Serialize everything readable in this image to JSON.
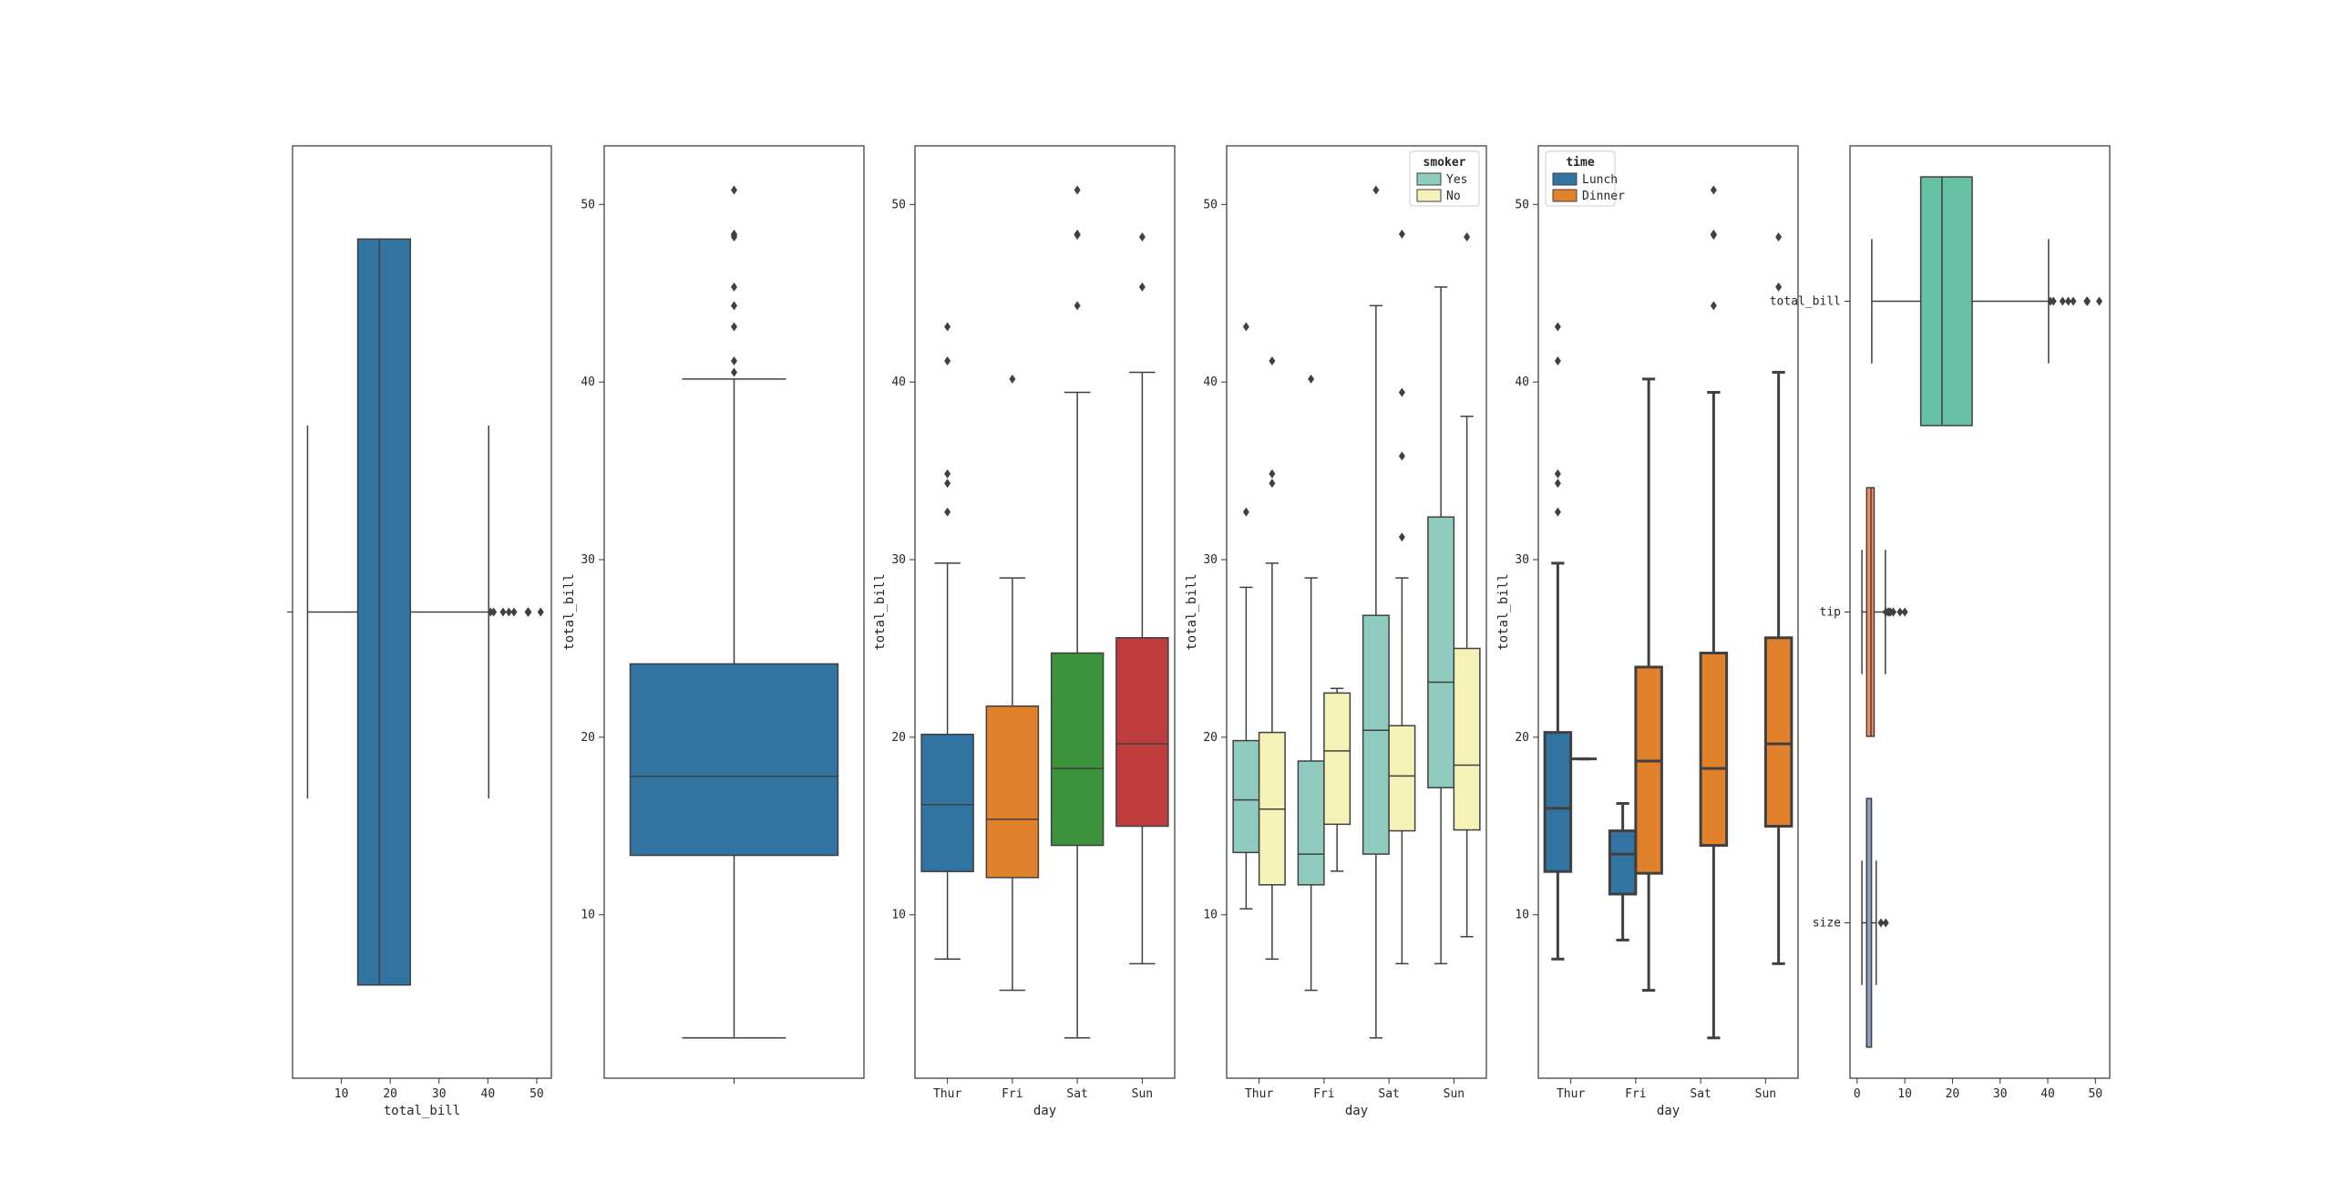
{
  "colors": {
    "default_blue": "#3274a1",
    "tab10": [
      "#3274a1",
      "#e1812c",
      "#3a923a",
      "#c03d3e"
    ],
    "smoker": {
      "Yes": "#8fcbbf",
      "No": "#f5f2b8"
    },
    "time": {
      "Lunch": "#3274a1",
      "Dinner": "#e1812c"
    },
    "set2": [
      "#66c2a5",
      "#fc8d62",
      "#8da0cb"
    ],
    "line": "#404040",
    "axes": "#333333"
  },
  "chart_data": [
    {
      "type": "boxplot",
      "orient": "h",
      "xlabel": "total_bill",
      "ylabel": "",
      "xlim": [
        0,
        53
      ],
      "xticks": [
        10,
        20,
        30,
        40,
        50
      ],
      "yticks": [],
      "boxes": [
        {
          "cat": "",
          "color_key": "default_blue",
          "whislo": 3.07,
          "q1": 13.35,
          "med": 17.8,
          "q3": 24.13,
          "whishi": 40.17,
          "fliers": [
            40.55,
            41.19,
            43.11,
            44.3,
            45.35,
            48.17,
            48.27,
            48.33,
            50.81
          ]
        }
      ]
    },
    {
      "type": "boxplot",
      "orient": "v",
      "xlabel": "",
      "ylabel": "total_bill",
      "ylim": [
        0.8,
        53.3
      ],
      "yticks": [
        10,
        20,
        30,
        40,
        50
      ],
      "categories": [
        ""
      ],
      "boxes": [
        {
          "cat": "",
          "color_key": "default_blue",
          "whislo": 3.07,
          "q1": 13.35,
          "med": 17.8,
          "q3": 24.13,
          "whishi": 40.17,
          "fliers": [
            40.55,
            41.19,
            43.11,
            44.3,
            45.35,
            48.17,
            48.27,
            48.33,
            50.81
          ]
        }
      ]
    },
    {
      "type": "boxplot",
      "orient": "v",
      "xlabel": "day",
      "ylabel": "total_bill",
      "ylim": [
        0.8,
        53.3
      ],
      "yticks": [
        10,
        20,
        30,
        40,
        50
      ],
      "categories": [
        "Thur",
        "Fri",
        "Sat",
        "Sun"
      ],
      "boxes": [
        {
          "cat": "Thur",
          "color_key": "tab10.0",
          "whislo": 7.51,
          "q1": 12.44,
          "med": 16.2,
          "q3": 20.16,
          "whishi": 29.8,
          "fliers": [
            32.68,
            34.3,
            34.83,
            41.19,
            43.11
          ]
        },
        {
          "cat": "Fri",
          "color_key": "tab10.1",
          "whislo": 5.75,
          "q1": 12.1,
          "med": 15.38,
          "q3": 21.75,
          "whishi": 28.97,
          "fliers": [
            40.17
          ]
        },
        {
          "cat": "Sat",
          "color_key": "tab10.2",
          "whislo": 3.07,
          "q1": 13.91,
          "med": 18.24,
          "q3": 24.74,
          "whishi": 39.42,
          "fliers": [
            44.3,
            48.27,
            48.33,
            50.81
          ]
        },
        {
          "cat": "Sun",
          "color_key": "tab10.3",
          "whislo": 7.25,
          "q1": 14.99,
          "med": 19.63,
          "q3": 25.6,
          "whishi": 40.55,
          "fliers": [
            45.35,
            48.17
          ]
        }
      ]
    },
    {
      "type": "boxplot",
      "orient": "v",
      "xlabel": "day",
      "ylabel": "total_bill",
      "ylim": [
        0.8,
        53.3
      ],
      "yticks": [
        10,
        20,
        30,
        40,
        50
      ],
      "categories": [
        "Thur",
        "Fri",
        "Sat",
        "Sun"
      ],
      "legend": {
        "title": "smoker",
        "position": "upper right",
        "entries": [
          "Yes",
          "No"
        ]
      },
      "boxes": [
        {
          "cat": "Thur",
          "hue": "Yes",
          "color_key": "smoker.Yes",
          "whislo": 10.34,
          "q1": 13.51,
          "med": 16.47,
          "q3": 19.81,
          "whishi": 28.44,
          "fliers": [
            32.68,
            43.11
          ]
        },
        {
          "cat": "Thur",
          "hue": "No",
          "color_key": "smoker.No",
          "whislo": 7.51,
          "q1": 11.69,
          "med": 15.95,
          "q3": 20.27,
          "whishi": 29.8,
          "fliers": [
            34.3,
            34.83,
            41.19
          ]
        },
        {
          "cat": "Fri",
          "hue": "Yes",
          "color_key": "smoker.Yes",
          "whislo": 5.75,
          "q1": 11.69,
          "med": 13.42,
          "q3": 18.66,
          "whishi": 28.97,
          "fliers": [
            40.17
          ]
        },
        {
          "cat": "Fri",
          "hue": "No",
          "color_key": "smoker.No",
          "whislo": 12.46,
          "q1": 15.1,
          "med": 19.23,
          "q3": 22.49,
          "whishi": 22.75,
          "fliers": []
        },
        {
          "cat": "Sat",
          "hue": "Yes",
          "color_key": "smoker.Yes",
          "whislo": 3.07,
          "q1": 13.42,
          "med": 20.39,
          "q3": 26.86,
          "whishi": 44.3,
          "fliers": [
            50.81
          ]
        },
        {
          "cat": "Sat",
          "hue": "No",
          "color_key": "smoker.No",
          "whislo": 7.25,
          "q1": 14.73,
          "med": 17.82,
          "q3": 20.65,
          "whishi": 28.97,
          "fliers": [
            31.27,
            35.83,
            39.42,
            48.33
          ]
        },
        {
          "cat": "Sun",
          "hue": "Yes",
          "color_key": "smoker.Yes",
          "whislo": 7.25,
          "q1": 17.16,
          "med": 23.1,
          "q3": 32.4,
          "whishi": 45.35,
          "fliers": []
        },
        {
          "cat": "Sun",
          "hue": "No",
          "color_key": "smoker.No",
          "whislo": 8.77,
          "q1": 14.78,
          "med": 18.43,
          "q3": 25.0,
          "whishi": 38.07,
          "fliers": [
            48.17
          ]
        }
      ]
    },
    {
      "type": "boxplot",
      "orient": "v",
      "xlabel": "day",
      "ylabel": "total_bill",
      "ylim": [
        0.8,
        53.3
      ],
      "yticks": [
        10,
        20,
        30,
        40,
        50
      ],
      "categories": [
        "Thur",
        "Fri",
        "Sat",
        "Sun"
      ],
      "legend": {
        "title": "time",
        "position": "upper left",
        "entries": [
          "Lunch",
          "Dinner"
        ]
      },
      "boxes": [
        {
          "cat": "Thur",
          "hue": "Lunch",
          "color_key": "time.Lunch",
          "whislo": 7.51,
          "q1": 12.44,
          "med": 16.0,
          "q3": 20.27,
          "whishi": 29.8,
          "fliers": [
            32.68,
            34.3,
            34.83,
            41.19,
            43.11
          ]
        },
        {
          "cat": "Thur",
          "hue": "Dinner",
          "color_key": "time.Dinner",
          "whislo": 18.78,
          "q1": 18.78,
          "med": 18.78,
          "q3": 18.78,
          "whishi": 18.78,
          "fliers": []
        },
        {
          "cat": "Fri",
          "hue": "Lunch",
          "color_key": "time.Lunch",
          "whislo": 8.58,
          "q1": 11.17,
          "med": 13.42,
          "q3": 14.73,
          "whishi": 16.27,
          "fliers": []
        },
        {
          "cat": "Fri",
          "hue": "Dinner",
          "color_key": "time.Dinner",
          "whislo": 5.75,
          "q1": 12.34,
          "med": 18.66,
          "q3": 23.95,
          "whishi": 40.17,
          "fliers": []
        },
        {
          "cat": "Sat",
          "hue": "Dinner",
          "color_key": "time.Dinner",
          "whislo": 3.07,
          "q1": 13.91,
          "med": 18.24,
          "q3": 24.74,
          "whishi": 39.42,
          "fliers": [
            44.3,
            48.27,
            48.33,
            50.81
          ]
        },
        {
          "cat": "Sun",
          "hue": "Dinner",
          "color_key": "time.Dinner",
          "whislo": 7.25,
          "q1": 14.99,
          "med": 19.63,
          "q3": 25.6,
          "whishi": 40.55,
          "fliers": [
            45.35,
            48.17
          ]
        }
      ]
    },
    {
      "type": "boxplot",
      "orient": "h",
      "xlabel": "",
      "ylabel": "",
      "xlim": [
        -1.5,
        53
      ],
      "xticks": [
        0,
        10,
        20,
        30,
        40,
        50
      ],
      "categories": [
        "total_bill",
        "tip",
        "size"
      ],
      "boxes": [
        {
          "cat": "total_bill",
          "color_key": "set2.0",
          "whislo": 3.07,
          "q1": 13.35,
          "med": 17.8,
          "q3": 24.13,
          "whishi": 40.17,
          "fliers": [
            40.55,
            41.19,
            43.11,
            44.3,
            45.35,
            48.17,
            48.27,
            48.33,
            50.81
          ]
        },
        {
          "cat": "tip",
          "color_key": "set2.1",
          "whislo": 1.0,
          "q1": 2.0,
          "med": 2.9,
          "q3": 3.56,
          "whishi": 5.92,
          "fliers": [
            6.0,
            6.5,
            6.7,
            7.0,
            7.58,
            9.0,
            10.0
          ]
        },
        {
          "cat": "size",
          "color_key": "set2.2",
          "whislo": 1.0,
          "q1": 2.0,
          "med": 2.0,
          "q3": 3.0,
          "whishi": 4.0,
          "fliers": [
            5.0,
            6.0
          ]
        }
      ]
    }
  ]
}
